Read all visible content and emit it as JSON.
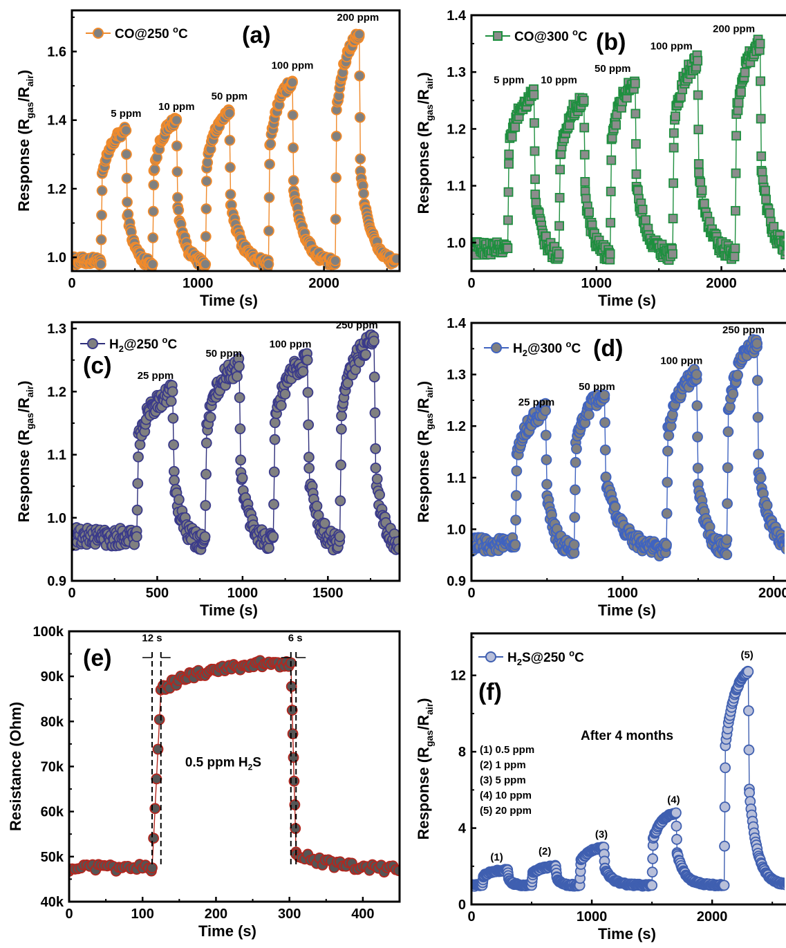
{
  "panels": [
    {
      "id": "a",
      "label": "(a)",
      "legend": "CO@250 °C",
      "xlabel": "Time (s)",
      "ylabel": "Response (R_gas/R_air)",
      "colors": {
        "face": "#808080",
        "edge": "#f08a2b",
        "line": "#f08a2b"
      },
      "marker": "circle",
      "xlim": [
        0,
        2600
      ],
      "ylim": [
        0.96,
        1.72
      ],
      "xticks": [
        "0",
        "1000",
        "2000"
      ],
      "xtick_values": [
        0,
        1000,
        2000
      ],
      "yticks": [
        "1.0",
        "1.2",
        "1.4",
        "1.6"
      ],
      "ytick_values": [
        1.0,
        1.2,
        1.4,
        1.6
      ],
      "annotations": [
        "5 ppm",
        "10 ppm",
        "50 ppm",
        "100 ppm",
        "200 ppm"
      ],
      "annotation_at": [
        [
          430,
          1.41
        ],
        [
          830,
          1.43
        ],
        [
          1250,
          1.46
        ],
        [
          1750,
          1.55
        ],
        [
          2270,
          1.69
        ]
      ],
      "pulses": [
        {
          "on": 230,
          "off": 430,
          "peak": 1.37,
          "start": 0.98
        },
        {
          "on": 640,
          "off": 830,
          "peak": 1.4,
          "start": 0.98
        },
        {
          "on": 1060,
          "off": 1250,
          "peak": 1.42,
          "start": 0.98
        },
        {
          "on": 1560,
          "off": 1750,
          "peak": 1.51,
          "start": 0.98
        },
        {
          "on": 2090,
          "off": 2280,
          "peak": 1.65,
          "start": 0.99
        }
      ],
      "baseline": 0.99,
      "tail_end": 2580,
      "noise": 0.012
    },
    {
      "id": "b",
      "label": "(b)",
      "legend": "CO@300 °C",
      "xlabel": "Time (s)",
      "ylabel": "Response (R_gas/R_air)",
      "colors": {
        "face": "#8c8c8c",
        "edge": "#1e8f3f",
        "line": "#1e8f3f"
      },
      "marker": "square",
      "xlim": [
        0,
        2600
      ],
      "ylim": [
        0.95,
        1.4
      ],
      "xticks": [
        "0",
        "1000",
        "2000"
      ],
      "xtick_values": [
        0,
        1000,
        2000
      ],
      "yticks": [
        "1.0",
        "1.1",
        "1.2",
        "1.3",
        "1.4"
      ],
      "ytick_values": [
        1.0,
        1.1,
        1.2,
        1.3,
        1.4
      ],
      "annotations": [
        "5 ppm",
        "10 ppm",
        "50 ppm",
        "100 ppm",
        "200 ppm"
      ],
      "annotation_at": [
        [
          300,
          1.28
        ],
        [
          700,
          1.28
        ],
        [
          1130,
          1.3
        ],
        [
          1600,
          1.34
        ],
        [
          2100,
          1.37
        ]
      ],
      "pulses": [
        {
          "on": 290,
          "off": 500,
          "peak": 1.26,
          "start": 0.99
        },
        {
          "on": 700,
          "off": 900,
          "peak": 1.25,
          "start": 0.98
        },
        {
          "on": 1110,
          "off": 1310,
          "peak": 1.28,
          "start": 0.98
        },
        {
          "on": 1610,
          "off": 1810,
          "peak": 1.32,
          "start": 0.98
        },
        {
          "on": 2110,
          "off": 2310,
          "peak": 1.35,
          "start": 0.99
        }
      ],
      "baseline": 0.99,
      "tail_end": 2600,
      "noise": 0.012
    },
    {
      "id": "c",
      "label": "(c)",
      "legend": "H2@250 °C",
      "xlabel": "Time (s)",
      "ylabel": "Response (R_gas/R_air)",
      "colors": {
        "face": "#808080",
        "edge": "#3a3a8a",
        "line": "#2e2e7a"
      },
      "marker": "circle",
      "xlim": [
        0,
        1920
      ],
      "ylim": [
        0.9,
        1.31
      ],
      "xticks": [
        "0",
        "500",
        "1000",
        "1500"
      ],
      "xtick_values": [
        0,
        500,
        1000,
        1500
      ],
      "yticks": [
        "0.9",
        "1.0",
        "1.1",
        "1.2",
        "1.3"
      ],
      "ytick_values": [
        0.9,
        1.0,
        1.1,
        1.2,
        1.3
      ],
      "annotations": [
        "25 ppm",
        "50 ppm",
        "100 ppm",
        "250 ppm"
      ],
      "annotation_at": [
        [
          490,
          1.22
        ],
        [
          890,
          1.255
        ],
        [
          1280,
          1.27
        ],
        [
          1670,
          1.3
        ]
      ],
      "pulses": [
        {
          "on": 380,
          "off": 590,
          "peak": 1.2,
          "start": 0.97
        },
        {
          "on": 780,
          "off": 980,
          "peak": 1.24,
          "start": 0.97
        },
        {
          "on": 1180,
          "off": 1380,
          "peak": 1.25,
          "start": 0.97
        },
        {
          "on": 1570,
          "off": 1770,
          "peak": 1.28,
          "start": 0.97
        }
      ],
      "baseline": 0.97,
      "tail_end": 1920,
      "noise": 0.015
    },
    {
      "id": "d",
      "label": "(d)",
      "legend": "H2@300 °C",
      "xlabel": "Time (s)",
      "ylabel": "Response (R_gas/R_air)",
      "colors": {
        "face": "#808080",
        "edge": "#3f63c0",
        "line": "#3f63c0"
      },
      "marker": "circle",
      "xlim": [
        0,
        2150
      ],
      "ylim": [
        0.9,
        1.4
      ],
      "xticks": [
        "0",
        "1000",
        "2000"
      ],
      "xtick_values": [
        0,
        1000,
        2000
      ],
      "yticks": [
        "0.9",
        "1.0",
        "1.1",
        "1.2",
        "1.3",
        "1.4"
      ],
      "ytick_values": [
        0.9,
        1.0,
        1.1,
        1.2,
        1.3,
        1.4
      ],
      "annotations": [
        "25 ppm",
        "50 ppm",
        "100 ppm",
        "250 ppm"
      ],
      "annotation_at": [
        [
          430,
          1.24
        ],
        [
          830,
          1.27
        ],
        [
          1390,
          1.32
        ],
        [
          1800,
          1.38
        ]
      ],
      "pulses": [
        {
          "on": 290,
          "off": 490,
          "peak": 1.23,
          "start": 0.97
        },
        {
          "on": 680,
          "off": 880,
          "peak": 1.26,
          "start": 0.97
        },
        {
          "on": 1290,
          "off": 1490,
          "peak": 1.3,
          "start": 0.97
        },
        {
          "on": 1690,
          "off": 1890,
          "peak": 1.36,
          "start": 0.98
        }
      ],
      "baseline": 0.97,
      "tail_end": 2150,
      "noise": 0.014
    },
    {
      "id": "e",
      "label": "(e)",
      "legend": "",
      "xlabel": "Time (s)",
      "ylabel": "Resistance (Ohm)",
      "colors": {
        "face": "#555555",
        "edge": "#b3261e",
        "line": "#b3261e"
      },
      "marker": "circle",
      "xlim": [
        0,
        450
      ],
      "ylim": [
        40000,
        100000
      ],
      "xticks": [
        "0",
        "100",
        "200",
        "300",
        "400"
      ],
      "xtick_values": [
        0,
        100,
        200,
        300,
        400
      ],
      "yticks": [
        "40k",
        "50k",
        "60k",
        "70k",
        "80k",
        "90k",
        "100k"
      ],
      "ytick_values": [
        40000,
        50000,
        60000,
        70000,
        80000,
        90000,
        100000
      ],
      "annotations": [
        "12 s",
        "6 s"
      ],
      "annotation_at": [
        [
          113,
          97800
        ],
        [
          308,
          97800
        ]
      ],
      "note": "0.5 ppm H2S",
      "segments": {
        "base_level": 47500,
        "rise_start": 113,
        "rise_end": 125,
        "plateau_start": 87000,
        "plateau_end": 93000,
        "fall_start": 302,
        "fall_end": 309,
        "recover_level": 47000,
        "end": 450
      }
    },
    {
      "id": "f",
      "label": "(f)",
      "legend": "H2S@250 °C",
      "xlabel": "Time (s)",
      "ylabel": "Response (R_gas/R_air)",
      "colors": {
        "face": "#b8bfd9",
        "edge": "#3f5fb0",
        "line": "#3f5fb0"
      },
      "marker": "circle",
      "xlim": [
        0,
        2700
      ],
      "ylim": [
        0,
        14.2
      ],
      "xticks": [
        "0",
        "1000",
        "2000"
      ],
      "xtick_values": [
        0,
        1000,
        2000
      ],
      "yticks": [
        "0",
        "4",
        "8",
        "12"
      ],
      "ytick_values": [
        0,
        4,
        8,
        12
      ],
      "annotations": [
        "(1)",
        "(2)",
        "(3)",
        "(4)",
        "(5)"
      ],
      "annotation_at": [
        [
          210,
          2.3
        ],
        [
          610,
          2.6
        ],
        [
          1080,
          3.5
        ],
        [
          1680,
          5.3
        ],
        [
          2290,
          12.9
        ]
      ],
      "note": "After 4 months",
      "list": [
        "(1) 0.5 ppm",
        "(2) 1 ppm",
        "(3) 5 ppm",
        "(4) 10 ppm",
        "(5) 20 ppm"
      ],
      "pulses": [
        {
          "on": 90,
          "off": 300,
          "peak": 1.8,
          "start": 1.0
        },
        {
          "on": 500,
          "off": 700,
          "peak": 2.0,
          "start": 1.0
        },
        {
          "on": 900,
          "off": 1100,
          "peak": 3.0,
          "start": 1.0
        },
        {
          "on": 1500,
          "off": 1700,
          "peak": 4.8,
          "start": 1.0
        },
        {
          "on": 2100,
          "off": 2300,
          "peak": 12.2,
          "start": 1.0
        }
      ],
      "baseline": 1.0,
      "tail_end": 2700,
      "noise": 0.05
    }
  ]
}
